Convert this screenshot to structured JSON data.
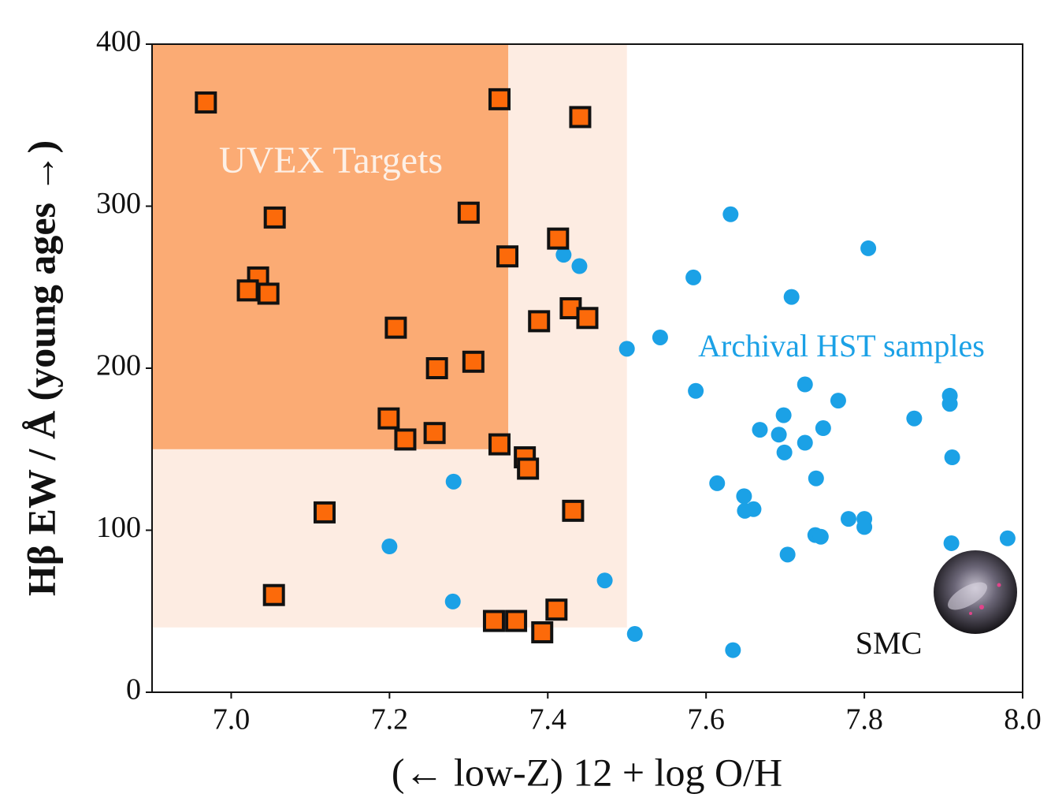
{
  "chart_data": {
    "type": "scatter",
    "xlabel": "(← low-Z) 12 + log O/H",
    "ylabel": "Hβ EW / Å (young ages →)",
    "xlim": [
      6.9,
      8.0
    ],
    "ylim": [
      0,
      400
    ],
    "xticks": [
      {
        "value": 7,
        "label": "7.0"
      },
      7.2,
      7.4,
      7.6,
      7.8,
      {
        "value": 8,
        "label": "8.0"
      }
    ],
    "yticks": [
      0,
      100,
      200,
      300,
      400
    ],
    "regions": [
      {
        "x": [
          6.9,
          7.5
        ],
        "y": [
          40,
          400
        ],
        "color": "#fdece2"
      },
      {
        "x": [
          6.9,
          7.35
        ],
        "y": [
          150,
          400
        ],
        "color": "#fbab74"
      }
    ],
    "series": [
      {
        "name": "UVEX Targets",
        "marker": "square",
        "color": "#fc6a0a",
        "x": [
          6.968,
          7.339,
          7.441,
          7.055,
          7.3,
          7.413,
          7.349,
          7.034,
          7.021,
          7.047,
          7.208,
          7.429,
          7.389,
          7.45,
          7.26,
          7.306,
          7.199,
          7.22,
          7.257,
          7.339,
          7.371,
          7.375,
          7.118,
          7.432,
          7.054,
          7.332,
          7.36,
          7.411,
          7.393
        ],
        "values": [
          364,
          366,
          355,
          293,
          296,
          280,
          269,
          256,
          248,
          246,
          225,
          237,
          229,
          231,
          200,
          204,
          169,
          156,
          160,
          153,
          145,
          138,
          111,
          112,
          60,
          44,
          44,
          51,
          37
        ]
      },
      {
        "name": "Archival HST samples",
        "marker": "circle",
        "color": "#1ba1e6",
        "x": [
          7.42,
          7.44,
          7.631,
          7.805,
          7.584,
          7.708,
          7.542,
          7.5,
          7.587,
          7.725,
          7.767,
          7.908,
          7.908,
          7.698,
          7.863,
          7.668,
          7.692,
          7.748,
          7.725,
          7.699,
          7.911,
          7.281,
          7.614,
          7.739,
          7.648,
          7.649,
          7.66,
          7.78,
          7.8,
          7.8,
          7.738,
          7.745,
          7.2,
          7.91,
          7.981,
          7.703,
          7.472,
          7.28,
          7.51,
          7.634
        ],
        "values": [
          270,
          263,
          295,
          274,
          256,
          244,
          219,
          212,
          186,
          190,
          180,
          183,
          178,
          171,
          169,
          162,
          159,
          163,
          154,
          148,
          145,
          130,
          129,
          132,
          121,
          112,
          113,
          107,
          107,
          102,
          97,
          96,
          90,
          92,
          95,
          85,
          69,
          56,
          36,
          26
        ]
      }
    ],
    "annotations": [
      {
        "text": "SMC"
      }
    ]
  }
}
